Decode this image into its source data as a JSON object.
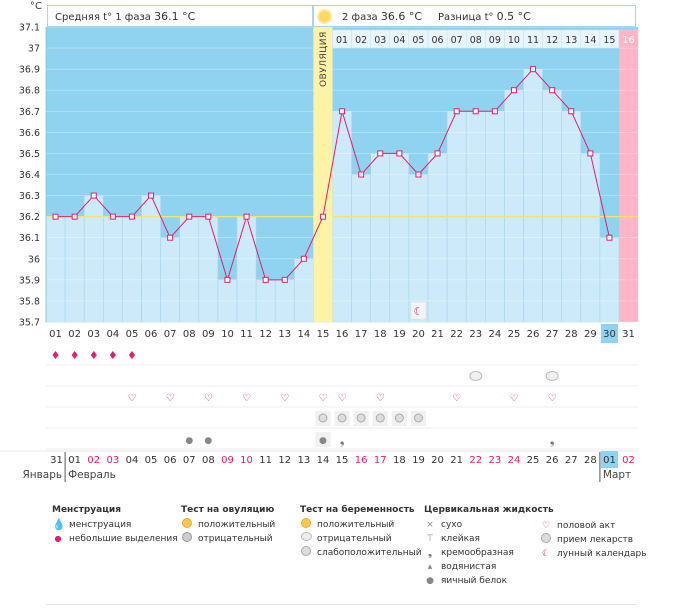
{
  "header": {
    "unit": "°C",
    "phase1_label": "Средняя t° 1 фаза",
    "phase1_value": "36.1 °C",
    "phase2_label": "2 фаза",
    "phase2_value": "36.6 °C",
    "diff_label": "Разница t°",
    "diff_value": "0.5 °C",
    "ovulation_label": "ОВУЛЯЦИЯ"
  },
  "chart_data": {
    "type": "line",
    "title": "",
    "ylabel": "°C",
    "ylim": [
      35.7,
      37.1
    ],
    "yticks": [
      "37.1",
      "37",
      "36.9",
      "36.8",
      "36.7",
      "36.6",
      "36.5",
      "36.4",
      "36.3",
      "36.2",
      "36.1",
      "36",
      "35.9",
      "35.8",
      "35.7"
    ],
    "coverline": 36.2,
    "ovulation_day_index": 14,
    "x_dates": [
      "01",
      "02",
      "03",
      "04",
      "05",
      "06",
      "07",
      "08",
      "09",
      "10",
      "11",
      "12",
      "13",
      "14",
      "15",
      "16",
      "17",
      "18",
      "19",
      "20",
      "21",
      "22",
      "23",
      "24",
      "25",
      "26",
      "27",
      "28",
      "29",
      "30",
      "31"
    ],
    "phase2_day_labels": [
      "01",
      "02",
      "03",
      "04",
      "05",
      "06",
      "07",
      "08",
      "09",
      "10",
      "11",
      "12",
      "13",
      "14",
      "15",
      "16"
    ],
    "values": [
      36.2,
      36.2,
      36.3,
      36.2,
      36.2,
      36.3,
      36.1,
      36.2,
      36.2,
      35.9,
      36.2,
      35.9,
      35.9,
      36.0,
      36.2,
      36.7,
      36.4,
      36.5,
      36.5,
      36.4,
      36.5,
      36.7,
      36.7,
      36.7,
      36.8,
      36.9,
      36.8,
      36.7,
      36.5,
      36.1,
      null
    ],
    "highlighted_date_index": 29
  },
  "calendar": {
    "days": [
      "31",
      "01",
      "02",
      "03",
      "04",
      "05",
      "06",
      "07",
      "08",
      "09",
      "10",
      "11",
      "12",
      "13",
      "14",
      "15",
      "16",
      "17",
      "18",
      "19",
      "20",
      "21",
      "22",
      "23",
      "24",
      "25",
      "26",
      "27",
      "28",
      "01",
      "02"
    ],
    "red_indices": [
      2,
      3,
      9,
      10,
      16,
      17,
      22,
      23,
      24,
      30
    ],
    "highlight_index": 29,
    "months": [
      "Январь",
      "Февраль",
      "Март"
    ]
  },
  "legend": {
    "menstruation": {
      "title": "Менструация",
      "items": [
        "менструация",
        "небольшие выделения"
      ]
    },
    "ovulation_test": {
      "title": "Тест на овуляцию",
      "items": [
        "положительный",
        "отрицательный"
      ]
    },
    "pregnancy_test": {
      "title": "Тест на беременность",
      "items": [
        "положительный",
        "отрицательный",
        "слабоположительный"
      ]
    },
    "cervical_fluid": {
      "title": "Цервикальная жидкость",
      "items": [
        "сухо",
        "клейкая",
        "кремообразная",
        "водянистая",
        "яичный белок"
      ]
    },
    "other": {
      "items": [
        "половой акт",
        "прием лекарств",
        "лунный календарь"
      ]
    }
  },
  "colors": {
    "bar": "#cdeafa",
    "plot_bg": "#8fd3f1",
    "line": "#e0206c",
    "ovulation": "#fdf3a6",
    "last_day": "#ffb5c8",
    "red_text": "#e0206c",
    "highlight": "#8fd3f1"
  }
}
